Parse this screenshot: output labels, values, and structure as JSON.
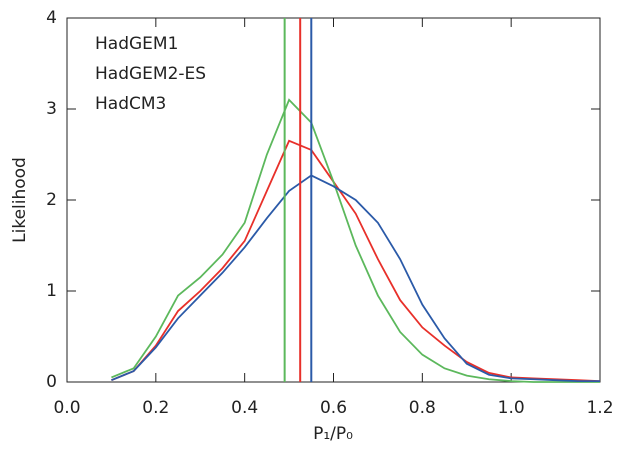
{
  "chart_data": {
    "type": "line",
    "x_label": "P₁/P₀",
    "y_label": "Likelihood",
    "x": [
      0.1,
      0.15,
      0.2,
      0.25,
      0.3,
      0.35,
      0.4,
      0.45,
      0.5,
      0.55,
      0.6,
      0.65,
      0.7,
      0.75,
      0.8,
      0.85,
      0.9,
      0.95,
      1.0,
      1.05,
      1.1,
      1.15,
      1.2
    ],
    "series": [
      {
        "name": "HadGEM1",
        "color": "#e8302a",
        "values": [
          0.02,
          0.12,
          0.4,
          0.78,
          1.0,
          1.25,
          1.55,
          2.1,
          2.65,
          2.55,
          2.2,
          1.85,
          1.35,
          0.9,
          0.6,
          0.4,
          0.22,
          0.1,
          0.05,
          0.04,
          0.03,
          0.02,
          0.01
        ]
      },
      {
        "name": "HadGEM2-ES",
        "color": "#5cb85c",
        "values": [
          0.05,
          0.15,
          0.5,
          0.95,
          1.15,
          1.4,
          1.75,
          2.5,
          3.1,
          2.85,
          2.2,
          1.5,
          0.95,
          0.55,
          0.3,
          0.15,
          0.07,
          0.03,
          0.01,
          0.0,
          0.0,
          0.0,
          0.0
        ]
      },
      {
        "name": "HadCM3",
        "color": "#2b5aa8",
        "values": [
          0.02,
          0.12,
          0.38,
          0.7,
          0.95,
          1.2,
          1.48,
          1.8,
          2.1,
          2.27,
          2.15,
          2.0,
          1.75,
          1.35,
          0.85,
          0.48,
          0.2,
          0.08,
          0.04,
          0.03,
          0.02,
          0.01,
          0.01
        ]
      }
    ],
    "vertical_lines": [
      0.525,
      0.49,
      0.55
    ],
    "xlim": [
      0,
      1.2
    ],
    "xticks": [
      {
        "value": 0,
        "label": "0.0"
      },
      0.2,
      0.4,
      0.6,
      0.8,
      {
        "value": 1,
        "label": "1.0"
      },
      1.2
    ],
    "ylim": [
      0,
      4
    ],
    "yticks": [
      0,
      1,
      2,
      3,
      4
    ]
  }
}
